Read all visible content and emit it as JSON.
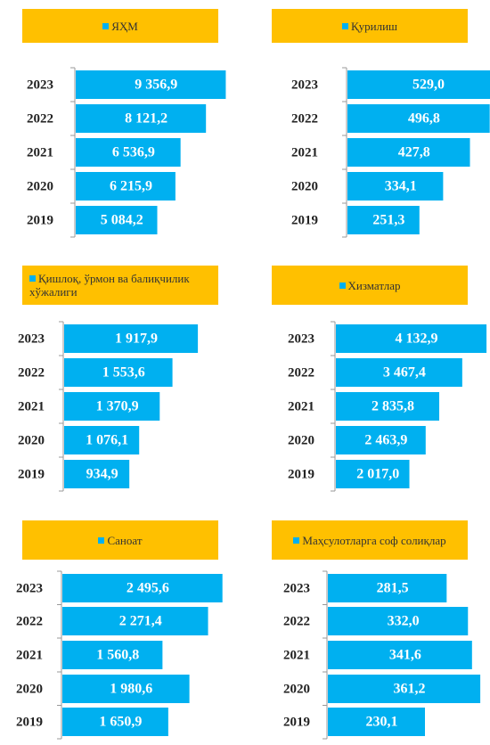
{
  "chart_data": [
    {
      "type": "bar",
      "categories": [
        "2023",
        "2022",
        "2021",
        "2020",
        "2019"
      ],
      "xlim": [
        0,
        10000
      ],
      "series": [
        {
          "name": "ЯҲМ",
          "color": "#00b0f0",
          "values": [
            9356.9,
            8121.2,
            6536.9,
            6215.9,
            5084.2
          ],
          "value_labels": [
            "9 356,9",
            "8 121,2",
            "6 536,9",
            "6 215,9",
            "5 084,2"
          ]
        }
      ]
    },
    {
      "type": "bar",
      "categories": [
        "2023",
        "2022",
        "2021",
        "2020",
        "2019"
      ],
      "xlim": [
        0,
        560
      ],
      "series": [
        {
          "name": "Қурилиш",
          "color": "#00b0f0",
          "values": [
            529.0,
            496.8,
            427.8,
            334.1,
            251.3
          ],
          "value_labels": [
            "529,0",
            "496,8",
            "427,8",
            "334,1",
            "251,3"
          ]
        }
      ]
    },
    {
      "type": "bar",
      "categories": [
        "2023",
        "2022",
        "2021",
        "2020",
        "2019"
      ],
      "xlim": [
        0,
        2300
      ],
      "series": [
        {
          "name": "Қишлоқ, ўрмон ва балиқчилик хўжалиги",
          "color": "#00b0f0",
          "values": [
            1917.9,
            1553.6,
            1370.9,
            1076.1,
            934.9
          ],
          "value_labels": [
            "1 917,9",
            "1 553,6",
            "1 370,9",
            "1 076,1",
            "934,9"
          ]
        }
      ]
    },
    {
      "type": "bar",
      "categories": [
        "2023",
        "2022",
        "2021",
        "2020",
        "2019"
      ],
      "xlim": [
        0,
        4400
      ],
      "series": [
        {
          "name": "Хизматлар",
          "color": "#00b0f0",
          "values": [
            4132.9,
            3467.4,
            2835.8,
            2463.9,
            2017.0
          ],
          "value_labels": [
            "4 132,9",
            "3 467,4",
            "2 835,8",
            "2 463,9",
            "2 017,0"
          ]
        }
      ]
    },
    {
      "type": "bar",
      "categories": [
        "2023",
        "2022",
        "2021",
        "2020",
        "2019"
      ],
      "xlim": [
        0,
        2500
      ],
      "series": [
        {
          "name": "Саноат",
          "color": "#00b0f0",
          "values": [
            2495.6,
            2271.4,
            1560.8,
            1980.6,
            1650.9
          ],
          "value_labels": [
            "2 495,6",
            "2 271,4",
            "1 560,8",
            "1 980,6",
            "1 650,9"
          ]
        }
      ]
    },
    {
      "type": "bar",
      "categories": [
        "2023",
        "2022",
        "2021",
        "2020",
        "2019"
      ],
      "xlim": [
        0,
        380
      ],
      "series": [
        {
          "name": "Маҳсулотларга соф солиқлар",
          "color": "#00b0f0",
          "values": [
            281.5,
            332.0,
            341.6,
            361.2,
            230.1
          ],
          "value_labels": [
            "281,5",
            "332,0",
            "341,6",
            "361,2",
            "230,1"
          ]
        }
      ]
    }
  ]
}
